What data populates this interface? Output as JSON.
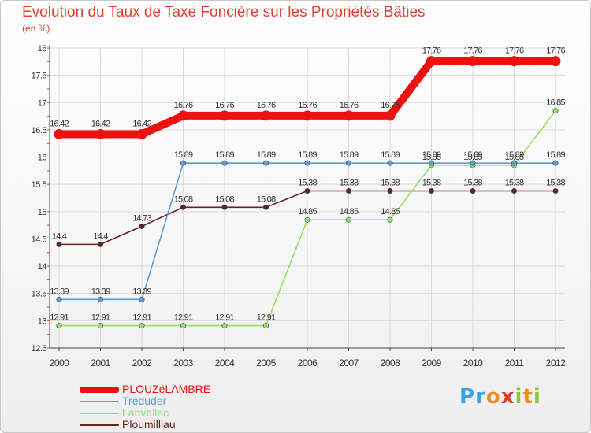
{
  "chart_data": {
    "type": "line",
    "title": "Evolution du Taux de Taxe Foncière sur les Propriétés Bâties",
    "ylabel": "(en %)",
    "xlabel": "",
    "categories": [
      "2000",
      "2001",
      "2002",
      "2003",
      "2004",
      "2005",
      "2006",
      "2007",
      "2008",
      "2009",
      "2010",
      "2011",
      "2012"
    ],
    "ylim": [
      12.5,
      18
    ],
    "yticks": [
      12.5,
      13,
      13.5,
      14,
      14.5,
      15,
      15.5,
      16,
      16.5,
      17,
      17.5,
      18
    ],
    "ytick_labels": [
      "12.5",
      "13",
      "13.5",
      "14",
      "14.5",
      "15",
      "15.5",
      "16",
      "16.5",
      "17",
      "17.5",
      "18"
    ],
    "grid": true,
    "legend_position": "bottom-left",
    "series": [
      {
        "name": "PLOUZéLAMBRE",
        "color": "#ee1111",
        "values": [
          16.42,
          16.42,
          16.42,
          16.76,
          16.76,
          16.76,
          16.76,
          16.76,
          16.76,
          17.76,
          17.76,
          17.76,
          17.76
        ],
        "labels": [
          "16.42",
          "16.42",
          "16.42",
          "16.76",
          "16.76",
          "16.76",
          "16.76",
          "16.76",
          "16.76",
          "17.76",
          "17.76",
          "17.76",
          "17.76"
        ]
      },
      {
        "name": "Tréduder",
        "color": "#5c9ed0",
        "values": [
          13.39,
          13.39,
          13.39,
          15.89,
          15.89,
          15.89,
          15.89,
          15.89,
          15.89,
          15.89,
          15.89,
          15.89,
          15.89
        ],
        "labels": [
          "13.39",
          "13.39",
          "13.39",
          "15.89",
          "15.89",
          "15.89",
          "15.89",
          "15.89",
          "15.89",
          "15.89",
          "15.89",
          "15.89",
          "15.89"
        ]
      },
      {
        "name": "Lanvellec",
        "color": "#99dd66",
        "values": [
          12.91,
          12.91,
          12.91,
          12.91,
          12.91,
          12.91,
          14.85,
          14.85,
          14.85,
          15.85,
          15.85,
          15.85,
          16.85
        ],
        "labels": [
          "12.91",
          "12.91",
          "12.91",
          "12.91",
          "12.91",
          "12.91",
          "14.85",
          "14.85",
          "14.85",
          "15.85",
          "15.85",
          "15.85",
          "16.85"
        ]
      },
      {
        "name": "Ploumilliau",
        "color": "#6b2020",
        "values": [
          14.4,
          14.4,
          14.73,
          15.08,
          15.08,
          15.08,
          15.38,
          15.38,
          15.38,
          15.38,
          15.38,
          15.38,
          15.38
        ],
        "labels": [
          "14.4",
          "14.4",
          "14.73",
          "15.08",
          "15.08",
          "15.08",
          "15.38",
          "15.38",
          "15.38",
          "15.38",
          "15.38",
          "15.38",
          "15.38"
        ]
      }
    ]
  },
  "logo": {
    "text": "Proxiti",
    "letters": [
      {
        "ch": "P",
        "color": "#3aa0e0"
      },
      {
        "ch": "r",
        "color": "#3aa0e0"
      },
      {
        "ch": "o",
        "color": "#f08a1c"
      },
      {
        "ch": "x",
        "color": "#e23a2e"
      },
      {
        "ch": "i",
        "color": "#8cc63f"
      },
      {
        "ch": "t",
        "color": "#f08a1c"
      },
      {
        "ch": "i",
        "color": "#8cc63f"
      }
    ]
  }
}
